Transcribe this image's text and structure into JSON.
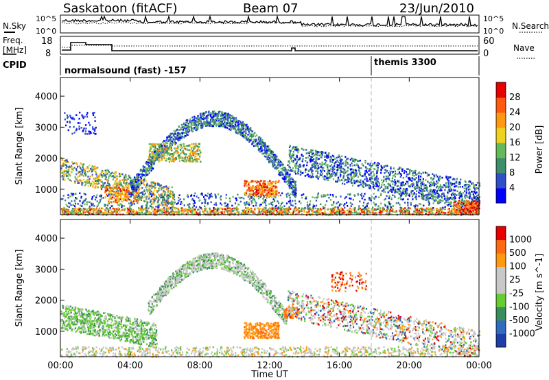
{
  "header": {
    "station": "Saskatoon (fitACF)",
    "beam": "Beam 07",
    "date": "23/Jun/2010"
  },
  "top_panel": {
    "left_label": "N.Sky",
    "right_label": "N.Search",
    "left_ticks": [
      "10^5",
      "10^0"
    ],
    "right_ticks": [
      "10^5",
      "10^0"
    ]
  },
  "freq_panel": {
    "left_label_line1": "Freq.",
    "left_label_line2": "[MHz]",
    "right_label": "Nave",
    "left_ticks": [
      "18",
      "8"
    ],
    "right_ticks": [
      "60",
      "0"
    ]
  },
  "cpid_panel": {
    "label": "CPID",
    "mode1": "normalsound (fast) -157",
    "mode2": "themis 3300"
  },
  "chart_data": [
    {
      "type": "heatmap",
      "title": "",
      "xlabel": "",
      "ylabel": "Slant Range [km]",
      "xlim": [
        0,
        24
      ],
      "ylim": [
        180,
        4600
      ],
      "yticks": [
        "1000",
        "2000",
        "3000",
        "4000"
      ],
      "colorbar": {
        "label": "Power [dB]",
        "ticks": [
          "4",
          "8",
          "12",
          "16",
          "20",
          "24",
          "28"
        ],
        "colors": [
          "#0000ff",
          "#2f4fc8",
          "#3e8e6a",
          "#66b95a",
          "#f0d020",
          "#ff9a10",
          "#ff5a10",
          "#e60000"
        ]
      },
      "scatter_regions": [
        {
          "name": "near range",
          "x_hours": [
            0,
            24
          ],
          "range_km": [
            180,
            420
          ],
          "level": "high"
        },
        {
          "name": "early arc",
          "x_hours": [
            0,
            6.5
          ],
          "range_km": [
            700,
            2000
          ],
          "level": "mid-high"
        },
        {
          "name": "arch",
          "x_hours": [
            4,
            13.5
          ],
          "range_km": [
            900,
            3300
          ],
          "level": "low-mid"
        },
        {
          "name": "patch 11h",
          "x_hours": [
            10.5,
            12.5
          ],
          "range_km": [
            800,
            1300
          ],
          "level": "high"
        },
        {
          "name": "late band",
          "x_hours": [
            13,
            24
          ],
          "range_km": [
            400,
            2100
          ],
          "level": "low-mid"
        }
      ]
    },
    {
      "type": "heatmap",
      "title": "",
      "xlabel": "Time UT",
      "ylabel": "Slant Range [km]",
      "xlim": [
        0,
        24
      ],
      "ylim": [
        180,
        4600
      ],
      "xticks": [
        "00:00",
        "04:00",
        "08:00",
        "12:00",
        "16:00",
        "20:00",
        "00:00"
      ],
      "yticks": [
        "1000",
        "2000",
        "3000",
        "4000"
      ],
      "colorbar": {
        "label": "Velocity [m s^-1]",
        "ticks": [
          "1000",
          "500",
          "100",
          "25",
          "-25",
          "-100",
          "-500",
          "-1000"
        ],
        "colors": [
          "#1f3fa8",
          "#2f6bc0",
          "#3b8e5a",
          "#66cc33",
          "#c8c8c8",
          "#c8c8c8",
          "#ff9a10",
          "#ff6a10",
          "#e60000"
        ]
      },
      "scatter_regions": [
        {
          "name": "green band",
          "x_hours": [
            0,
            5.5
          ],
          "range_km": [
            600,
            1800
          ],
          "velocity": "positive ~100"
        },
        {
          "name": "grey arch",
          "x_hours": [
            5,
            13
          ],
          "range_km": [
            1000,
            3300
          ],
          "velocity": "near zero"
        },
        {
          "name": "orange patch",
          "x_hours": [
            10.5,
            13.5
          ],
          "range_km": [
            800,
            1800
          ],
          "velocity": "-100 to -500"
        },
        {
          "name": "late grey",
          "x_hours": [
            13,
            24
          ],
          "range_km": [
            300,
            2000
          ],
          "velocity": "near zero"
        }
      ]
    }
  ]
}
